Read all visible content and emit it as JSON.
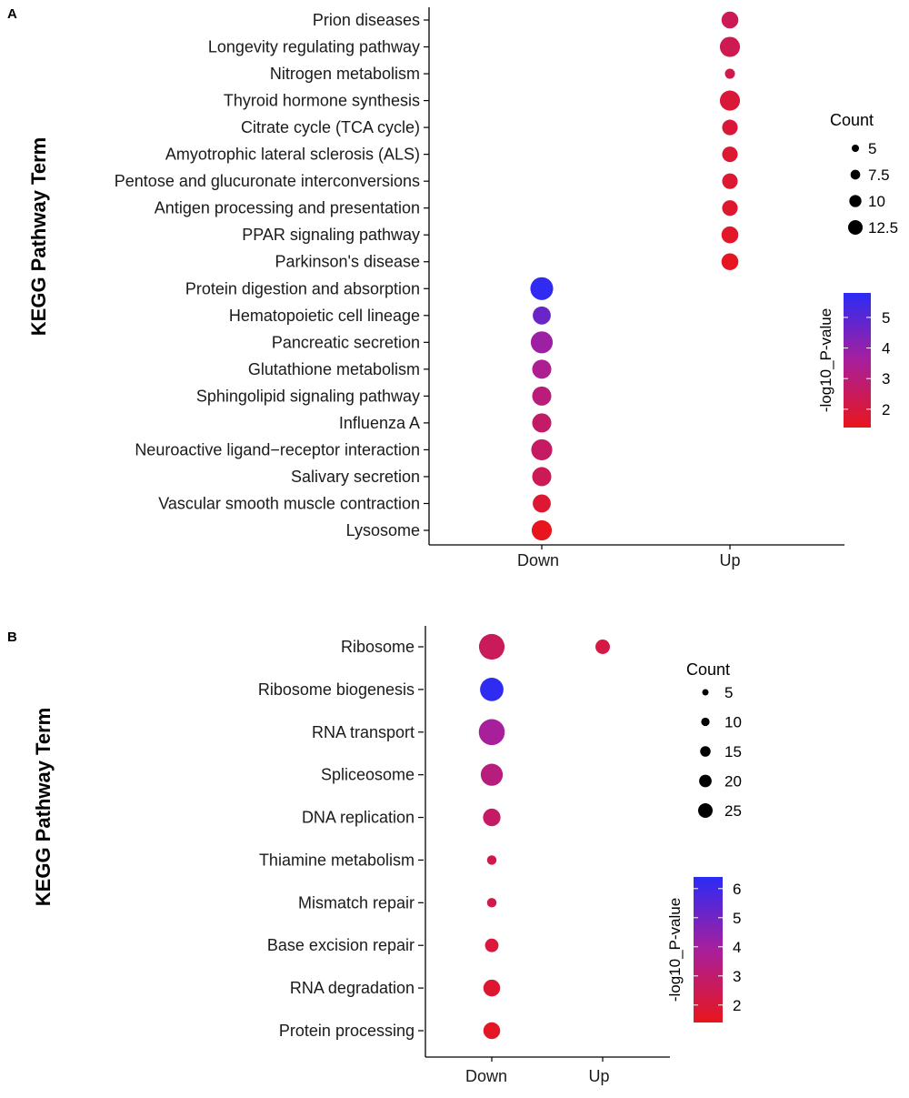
{
  "chart_data": [
    {
      "panel": "A",
      "type": "scatter",
      "ylabel": "KEGG Pathway Term",
      "xlabel": "",
      "categories": [
        "Down",
        "Up"
      ],
      "terms": [
        "Prion diseases",
        "Longevity regulating pathway",
        "Nitrogen metabolism",
        "Thyroid hormone synthesis",
        "Citrate cycle (TCA cycle)",
        "Amyotrophic lateral sclerosis (ALS)",
        "Pentose and glucuronate interconversions",
        "Antigen processing and presentation",
        "PPAR signaling pathway",
        "Parkinson's disease",
        "Protein digestion and absorption",
        "Hematopoietic cell lineage",
        "Pancreatic secretion",
        "Glutathione metabolism",
        "Sphingolipid signaling pathway",
        "Influenza A",
        "Neuroactive ligand−receptor interaction",
        "Salivary secretion",
        "Vascular smooth muscle contraction",
        "Lysosome"
      ],
      "points": [
        {
          "term": "Prion diseases",
          "group": "Up",
          "count": 7,
          "neglog10p": 2.4
        },
        {
          "term": "Longevity regulating pathway",
          "group": "Up",
          "count": 10,
          "neglog10p": 2.3
        },
        {
          "term": "Nitrogen metabolism",
          "group": "Up",
          "count": 3,
          "neglog10p": 2.2
        },
        {
          "term": "Thyroid hormone synthesis",
          "group": "Up",
          "count": 10,
          "neglog10p": 1.9
        },
        {
          "term": "Citrate cycle (TCA cycle)",
          "group": "Up",
          "count": 6,
          "neglog10p": 1.9
        },
        {
          "term": "Amyotrophic lateral sclerosis (ALS)",
          "group": "Up",
          "count": 6,
          "neglog10p": 1.8
        },
        {
          "term": "Pentose and glucuronate interconversions",
          "group": "Up",
          "count": 6,
          "neglog10p": 1.8
        },
        {
          "term": "Antigen processing and presentation",
          "group": "Up",
          "count": 6,
          "neglog10p": 1.7
        },
        {
          "term": "PPAR signaling pathway",
          "group": "Up",
          "count": 7,
          "neglog10p": 1.6
        },
        {
          "term": "Parkinson's disease",
          "group": "Up",
          "count": 7,
          "neglog10p": 1.5
        },
        {
          "term": "Protein digestion and absorption",
          "group": "Down",
          "count": 13,
          "neglog10p": 5.7
        },
        {
          "term": "Hematopoietic cell lineage",
          "group": "Down",
          "count": 8,
          "neglog10p": 4.7
        },
        {
          "term": "Pancreatic secretion",
          "group": "Down",
          "count": 12,
          "neglog10p": 3.8
        },
        {
          "term": "Glutathione metabolism",
          "group": "Down",
          "count": 9,
          "neglog10p": 3.4
        },
        {
          "term": "Sphingolipid signaling pathway",
          "group": "Down",
          "count": 9,
          "neglog10p": 3.0
        },
        {
          "term": "Influenza A",
          "group": "Down",
          "count": 9,
          "neglog10p": 2.7
        },
        {
          "term": "Neuroactive ligand−receptor interaction",
          "group": "Down",
          "count": 11,
          "neglog10p": 2.6
        },
        {
          "term": "Salivary secretion",
          "group": "Down",
          "count": 9,
          "neglog10p": 2.4
        },
        {
          "term": "Vascular smooth muscle contraction",
          "group": "Down",
          "count": 8,
          "neglog10p": 1.8
        },
        {
          "term": "Lysosome",
          "group": "Down",
          "count": 10,
          "neglog10p": 1.4
        }
      ],
      "size_legend": {
        "title": "Count",
        "breaks": [
          5,
          7.5,
          10,
          12.5
        ],
        "labels": [
          "5",
          "7.5",
          "10",
          "12.5"
        ]
      },
      "color_legend": {
        "title": "-log10_P-value",
        "range": [
          1.4,
          5.8
        ],
        "ticks": [
          2,
          3,
          4,
          5
        ],
        "tick_labels": [
          "2",
          "3",
          "4",
          "5"
        ],
        "low_color": "#e8161c",
        "high_color": "#2b2bf5"
      },
      "count_range": [
        2,
        14
      ]
    },
    {
      "panel": "B",
      "type": "scatter",
      "ylabel": "KEGG Pathway Term",
      "xlabel": "",
      "categories": [
        "Down",
        "Up"
      ],
      "terms": [
        "Ribosome",
        "Ribosome biogenesis",
        "RNA transport",
        "Spliceosome",
        "DNA replication",
        "Thiamine metabolism",
        "Mismatch repair",
        "Base excision repair",
        "RNA degradation",
        "Protein processing"
      ],
      "points": [
        {
          "term": "Ribosome",
          "group": "Down",
          "count": 27,
          "neglog10p": 2.6
        },
        {
          "term": "Ribosome",
          "group": "Up",
          "count": 7,
          "neglog10p": 2.2
        },
        {
          "term": "Ribosome biogenesis",
          "group": "Down",
          "count": 22,
          "neglog10p": 6.3
        },
        {
          "term": "RNA transport",
          "group": "Down",
          "count": 28,
          "neglog10p": 3.9
        },
        {
          "term": "Spliceosome",
          "group": "Down",
          "count": 19,
          "neglog10p": 3.3
        },
        {
          "term": "DNA replication",
          "group": "Down",
          "count": 11,
          "neglog10p": 2.8
        },
        {
          "term": "Thiamine metabolism",
          "group": "Down",
          "count": 3,
          "neglog10p": 2.3
        },
        {
          "term": "Mismatch repair",
          "group": "Down",
          "count": 3,
          "neglog10p": 2.3
        },
        {
          "term": "Base excision repair",
          "group": "Down",
          "count": 6,
          "neglog10p": 2.0
        },
        {
          "term": "RNA degradation",
          "group": "Down",
          "count": 10,
          "neglog10p": 1.8
        },
        {
          "term": "Protein processing",
          "group": "Down",
          "count": 10,
          "neglog10p": 1.6
        }
      ],
      "size_legend": {
        "title": "Count",
        "breaks": [
          5,
          10,
          15,
          20,
          25
        ],
        "labels": [
          "5",
          "10",
          "15",
          "20",
          "25"
        ]
      },
      "color_legend": {
        "title": "-log10_P-value",
        "range": [
          1.4,
          6.4
        ],
        "ticks": [
          2,
          3,
          4,
          5,
          6
        ],
        "tick_labels": [
          "2",
          "3",
          "4",
          "5",
          "6"
        ],
        "low_color": "#e8161c",
        "high_color": "#2b2bf5"
      },
      "count_range": [
        2,
        29
      ]
    }
  ],
  "panels": {
    "A": {
      "letter": "A"
    },
    "B": {
      "letter": "B"
    }
  }
}
